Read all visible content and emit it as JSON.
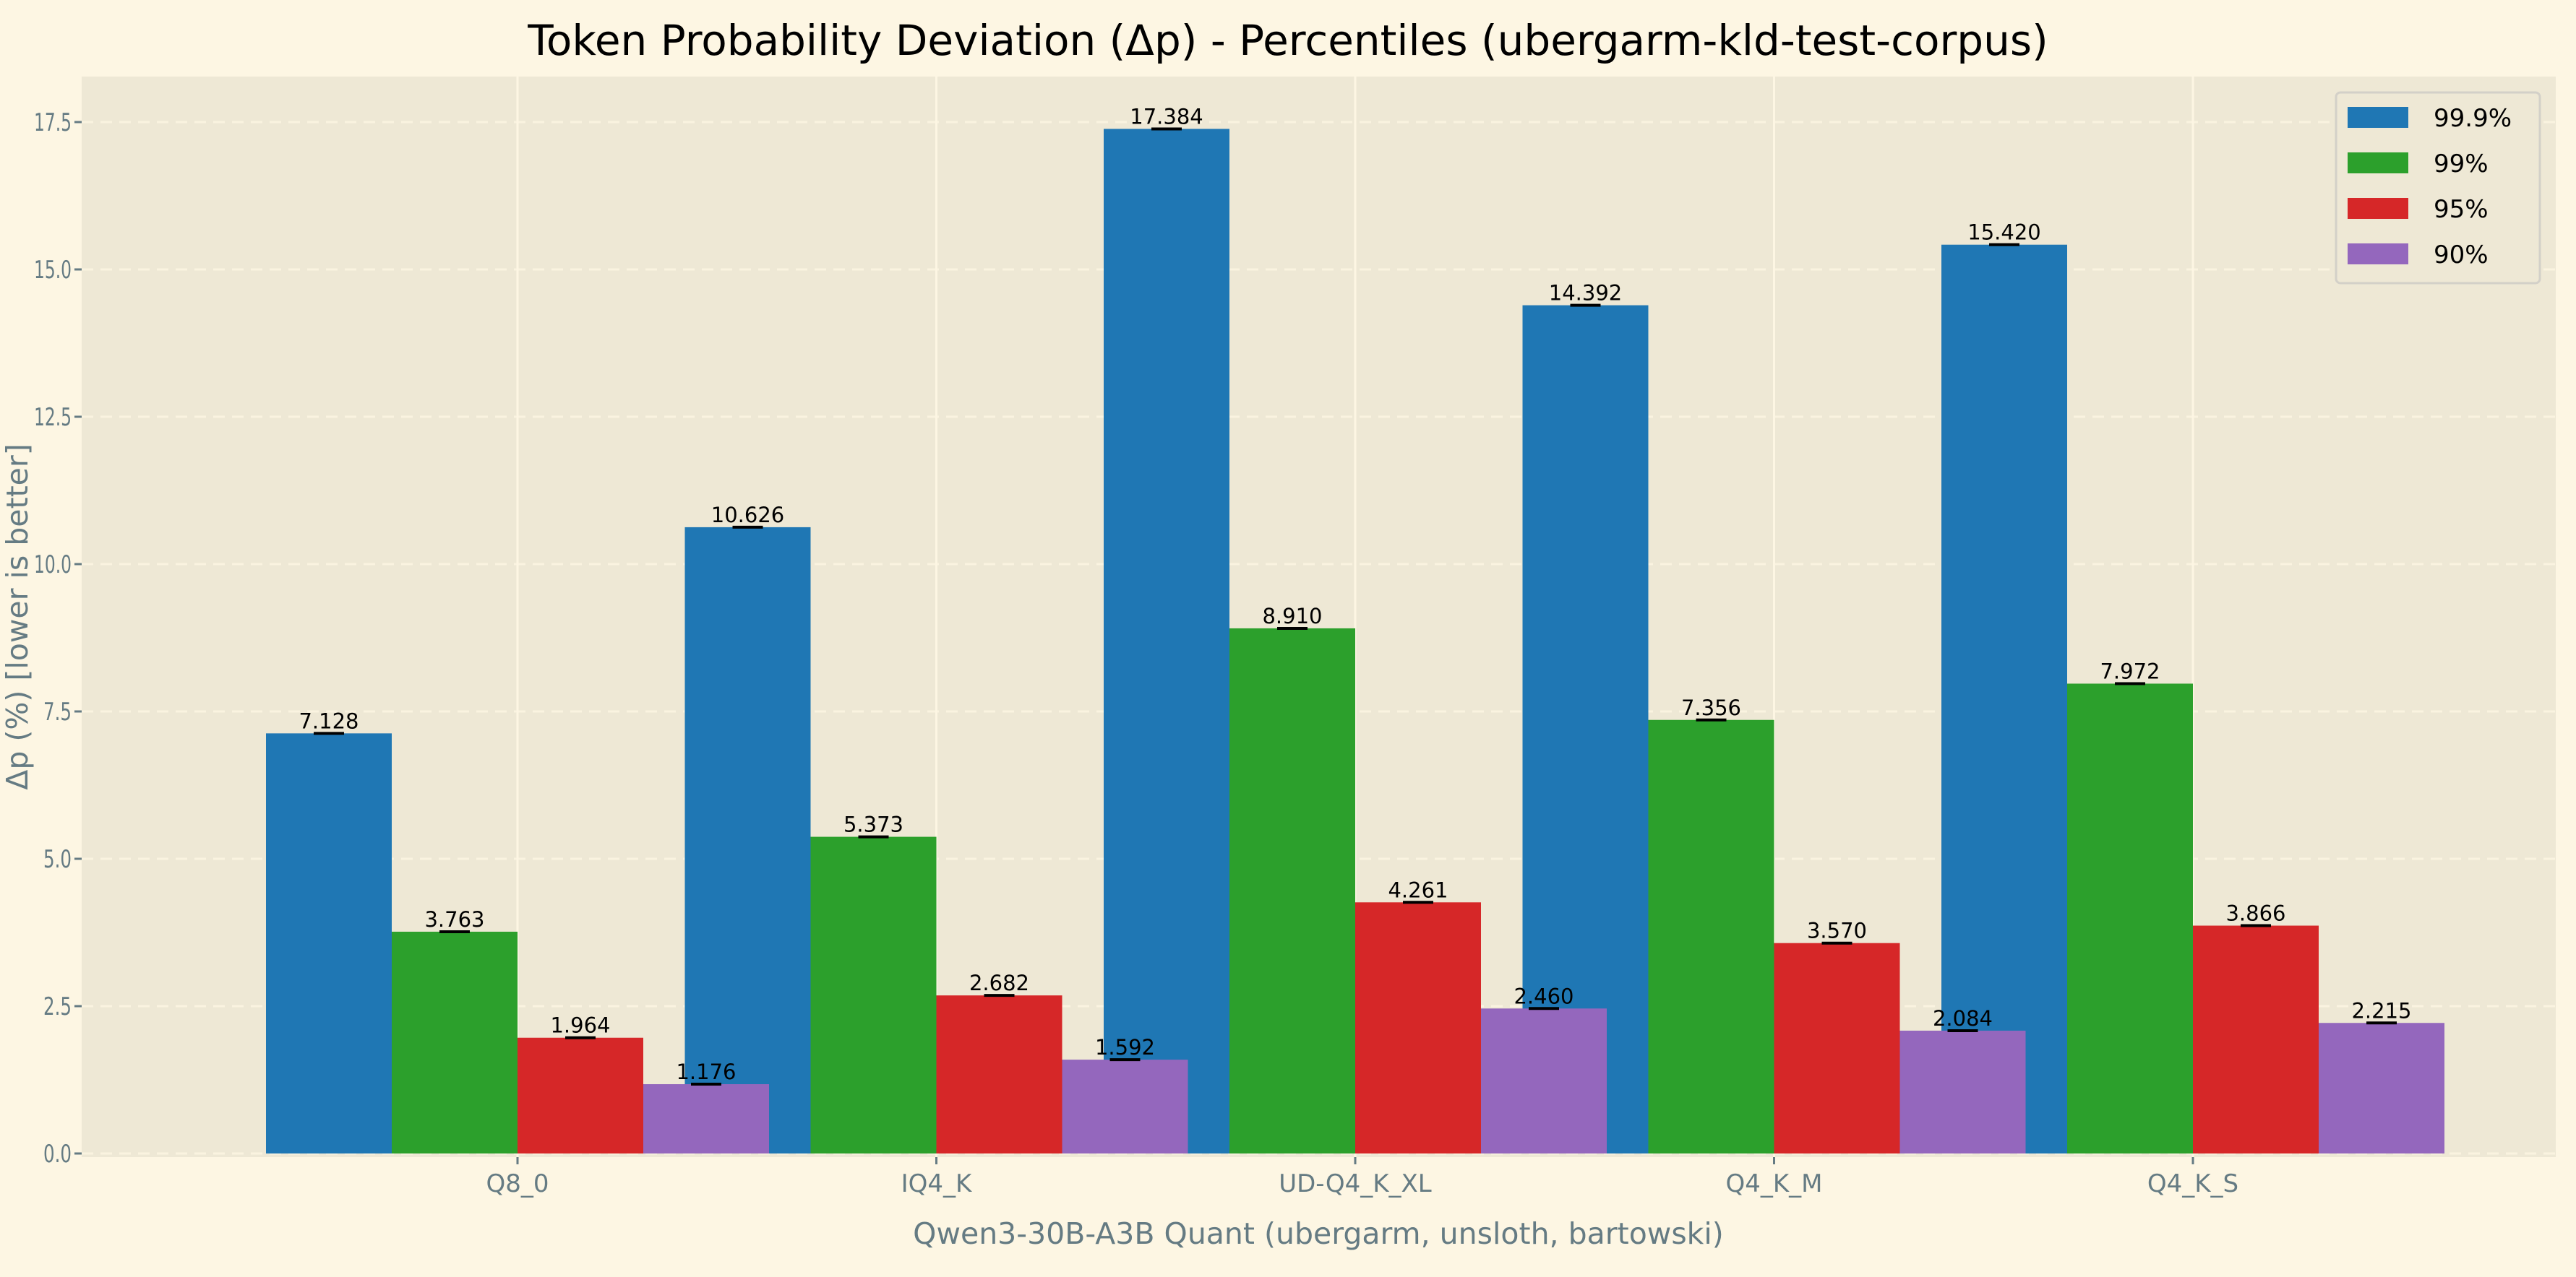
{
  "chart_data": {
    "type": "bar",
    "title": "Token Probability Deviation (Δp) - Percentiles (ubergarm-kld-test-corpus)",
    "xlabel": "Qwen3-30B-A3B Quant (ubergarm, unsloth, bartowski)",
    "ylabel": "Δp (%) [lower is better]",
    "categories": [
      "Q8_0",
      "IQ4_K",
      "UD-Q4_K_XL",
      "Q4_K_M",
      "Q4_K_S"
    ],
    "series": [
      {
        "name": "99.9%",
        "color": "#1f77b4",
        "values": [
          7.128,
          10.626,
          17.384,
          14.392,
          15.42
        ],
        "labels": [
          "7.128",
          "10.626",
          "17.384",
          "14.392",
          "15.420"
        ]
      },
      {
        "name": "99%",
        "color": "#2ca02c",
        "values": [
          3.763,
          5.373,
          8.91,
          7.356,
          7.972
        ],
        "labels": [
          "3.763",
          "5.373",
          "8.910",
          "7.356",
          "7.972"
        ]
      },
      {
        "name": "95%",
        "color": "#d62728",
        "values": [
          1.964,
          2.682,
          4.261,
          3.57,
          3.866
        ],
        "labels": [
          "1.964",
          "2.682",
          "4.261",
          "3.570",
          "3.866"
        ]
      },
      {
        "name": "90%",
        "color": "#9467bd",
        "values": [
          1.176,
          1.592,
          2.46,
          2.084,
          2.215
        ],
        "labels": [
          "1.176",
          "1.592",
          "2.460",
          "2.084",
          "2.215"
        ]
      }
    ],
    "yticks": [
      "0.0",
      "2.5",
      "5.0",
      "7.5",
      "10.0",
      "12.5",
      "15.0",
      "17.5"
    ],
    "ylim": [
      0,
      18.25
    ],
    "grid": true,
    "error_bars": true,
    "legend_position": "top-right"
  }
}
